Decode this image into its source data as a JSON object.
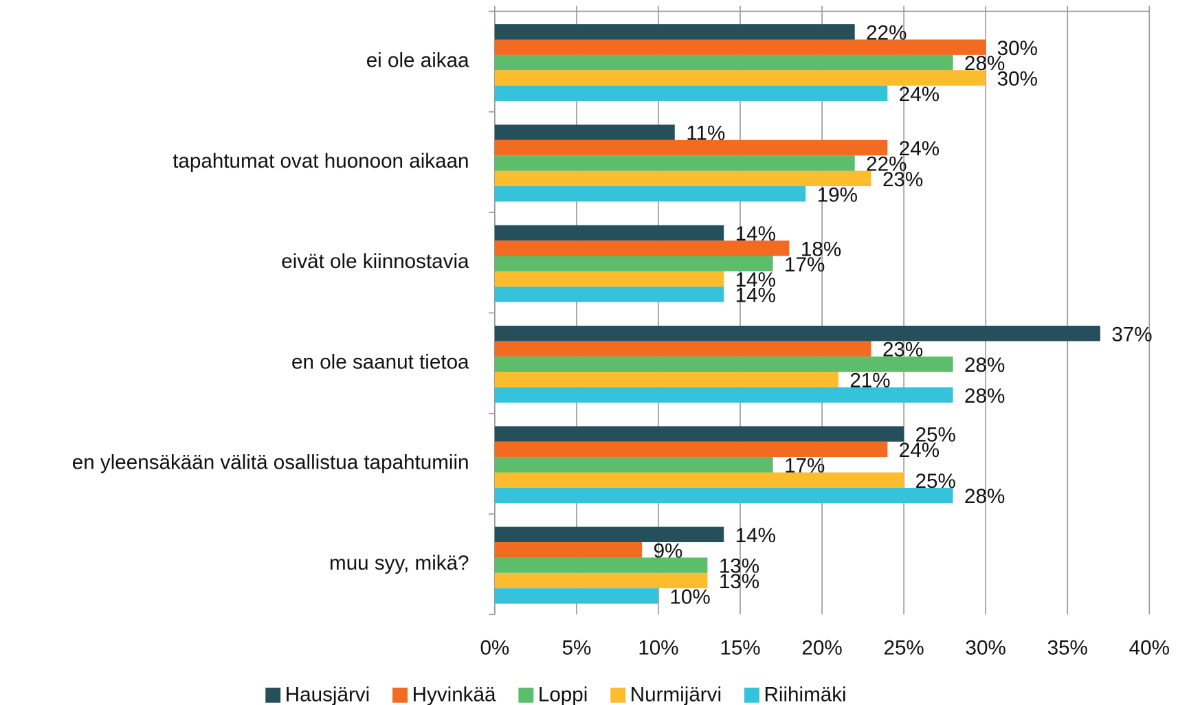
{
  "chart_data": {
    "type": "bar",
    "orientation": "horizontal",
    "categories": [
      "ei ole aikaa",
      "tapahtumat ovat huonoon aikaan",
      "eivät ole kiinnostavia",
      "en ole saanut tietoa",
      "en yleensäkään välitä osallistua tapahtumiin",
      "muu syy, mikä?"
    ],
    "series": [
      {
        "name": "Hausjärvi",
        "color": "#264f5c",
        "values": [
          22,
          11,
          14,
          37,
          25,
          14
        ],
        "value_labels": [
          "22%",
          "11%",
          "14%",
          "37%",
          "25%",
          "14%"
        ]
      },
      {
        "name": "Hyvinkää",
        "color": "#f26b21",
        "values": [
          30,
          24,
          18,
          23,
          24,
          9
        ],
        "value_labels": [
          "30%",
          "24%",
          "18%",
          "23%",
          "24%",
          "9%"
        ]
      },
      {
        "name": "Loppi",
        "color": "#5cbd6a",
        "values": [
          28,
          22,
          17,
          28,
          17,
          13
        ],
        "value_labels": [
          "28%",
          "22%",
          "17%",
          "28%",
          "17%",
          "13%"
        ]
      },
      {
        "name": "Nurmijärvi",
        "color": "#fbbd2e",
        "values": [
          30,
          23,
          14,
          21,
          25,
          13
        ],
        "value_labels": [
          "30%",
          "23%",
          "14%",
          "21%",
          "25%",
          "13%"
        ]
      },
      {
        "name": "Riihimäki",
        "color": "#35c3db",
        "values": [
          24,
          19,
          14,
          28,
          28,
          10
        ],
        "value_labels": [
          "24%",
          "19%",
          "14%",
          "28%",
          "28%",
          "10%"
        ]
      }
    ],
    "xlim": [
      0,
      40
    ],
    "xticks": [
      {
        "value": 0,
        "label": "0%"
      },
      {
        "value": 5,
        "label": "5%"
      },
      {
        "value": 10,
        "label": "10%"
      },
      {
        "value": 15,
        "label": "15%"
      },
      {
        "value": 20,
        "label": "20%"
      },
      {
        "value": 25,
        "label": "25%"
      },
      {
        "value": 30,
        "label": "30%"
      },
      {
        "value": 35,
        "label": "35%"
      },
      {
        "value": 40,
        "label": "40%"
      }
    ],
    "grid": true,
    "legend": "bottom"
  }
}
